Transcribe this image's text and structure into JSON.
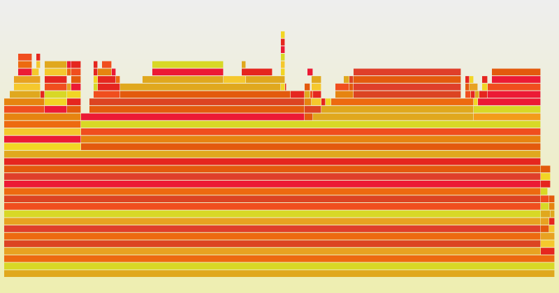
{
  "chart_data": {
    "type": "flamegraph",
    "title": "",
    "xlabel": "",
    "ylabel": "",
    "total": 800,
    "palette": [
      "#e5261f",
      "#ed6a10",
      "#e8a221",
      "#d8d826",
      "#f5c82d",
      "#e35a0d",
      "#df3f2a",
      "#e0a81e",
      "#f04e1e",
      "#f2d524",
      "#dc4422",
      "#ec1a35",
      "#f39c1a",
      "#d5a822",
      "#e68410"
    ],
    "depth_base": 19,
    "frames": [
      {
        "d": 0,
        "s": 6,
        "w": 788,
        "c": "#e0a81e"
      },
      {
        "d": 1,
        "s": 6,
        "w": 788,
        "c": "#d8d826"
      },
      {
        "d": 2,
        "s": 6,
        "w": 788,
        "c": "#ed6a10"
      },
      {
        "d": 3,
        "s": 6,
        "w": 768,
        "c": "#e8a221"
      },
      {
        "d": 3,
        "s": 774,
        "w": 20,
        "c": "#e5261f"
      },
      {
        "d": 4,
        "s": 6,
        "w": 768,
        "c": "#dc4422"
      },
      {
        "d": 4,
        "s": 774,
        "w": 20,
        "c": "#f5c82d"
      },
      {
        "d": 5,
        "s": 6,
        "w": 768,
        "c": "#ed6a10"
      },
      {
        "d": 5,
        "s": 774,
        "w": 20,
        "c": "#e8a221"
      },
      {
        "d": 6,
        "s": 6,
        "w": 768,
        "c": "#df3f2a"
      },
      {
        "d": 6,
        "s": 774,
        "w": 12,
        "c": "#e35a0d"
      },
      {
        "d": 6,
        "s": 786,
        "w": 8,
        "c": "#f5c82d"
      },
      {
        "d": 7,
        "s": 6,
        "w": 768,
        "c": "#e8a221"
      },
      {
        "d": 7,
        "s": 774,
        "w": 12,
        "c": "#e8a221"
      },
      {
        "d": 7,
        "s": 786,
        "w": 8,
        "c": "#e5261f"
      },
      {
        "d": 8,
        "s": 6,
        "w": 768,
        "c": "#d8d826"
      },
      {
        "d": 8,
        "s": 774,
        "w": 14,
        "c": "#e0a81e"
      },
      {
        "d": 8,
        "s": 788,
        "w": 6,
        "c": "#e0a81e"
      },
      {
        "d": 9,
        "s": 6,
        "w": 768,
        "c": "#f04e1e"
      },
      {
        "d": 9,
        "s": 774,
        "w": 12,
        "c": "#d8d826"
      },
      {
        "d": 9,
        "s": 786,
        "w": 8,
        "c": "#e68410"
      },
      {
        "d": 10,
        "s": 6,
        "w": 768,
        "c": "#dc4422"
      },
      {
        "d": 10,
        "s": 774,
        "w": 12,
        "c": "#f04e1e"
      },
      {
        "d": 10,
        "s": 786,
        "w": 8,
        "c": "#e35a0d"
      },
      {
        "d": 11,
        "s": 6,
        "w": 768,
        "c": "#ed6a10"
      },
      {
        "d": 11,
        "s": 774,
        "w": 10,
        "c": "#d8d826"
      },
      {
        "d": 12,
        "s": 6,
        "w": 768,
        "c": "#ec1a35"
      },
      {
        "d": 12,
        "s": 774,
        "w": 14,
        "c": "#e5261f"
      },
      {
        "d": 13,
        "s": 6,
        "w": 768,
        "c": "#df3f2a"
      },
      {
        "d": 13,
        "s": 774,
        "w": 14,
        "c": "#f2d524"
      },
      {
        "d": 14,
        "s": 6,
        "w": 768,
        "c": "#e35a0d"
      },
      {
        "d": 14,
        "s": 774,
        "w": 14,
        "c": "#e35a0d"
      },
      {
        "d": 15,
        "s": 6,
        "w": 768,
        "c": "#e5261f"
      },
      {
        "d": 16,
        "s": 6,
        "w": 768,
        "c": "#e0a81e"
      },
      {
        "d": 17,
        "s": 6,
        "w": 110,
        "c": "#f2d524"
      },
      {
        "d": 17,
        "s": 116,
        "w": 658,
        "c": "#e35a0d"
      },
      {
        "d": 18,
        "s": 6,
        "w": 110,
        "c": "#ec1a35"
      },
      {
        "d": 18,
        "s": 116,
        "w": 658,
        "c": "#e68410"
      },
      {
        "d": 19,
        "s": 6,
        "w": 110,
        "c": "#f5c82d"
      },
      {
        "d": 19,
        "s": 116,
        "w": 658,
        "c": "#f04e1e"
      },
      {
        "d": 20,
        "s": 6,
        "w": 110,
        "c": "#ed6a10"
      },
      {
        "d": 20,
        "s": 116,
        "w": 658,
        "c": "#d8d826"
      },
      {
        "d": 21,
        "s": 6,
        "w": 110,
        "c": "#e68410"
      },
      {
        "d": 21,
        "s": 116,
        "w": 320,
        "c": "#ec1a35"
      },
      {
        "d": 21,
        "s": 436,
        "w": 12,
        "c": "#e35a0d"
      },
      {
        "d": 21,
        "s": 448,
        "w": 230,
        "c": "#e0a81e"
      },
      {
        "d": 21,
        "s": 678,
        "w": 96,
        "c": "#f39c1a"
      },
      {
        "d": 22,
        "s": 6,
        "w": 58,
        "c": "#f04e1e"
      },
      {
        "d": 22,
        "s": 64,
        "w": 32,
        "c": "#ec1a35"
      },
      {
        "d": 22,
        "s": 96,
        "w": 20,
        "c": "#e35a0d"
      },
      {
        "d": 22,
        "s": 128,
        "w": 308,
        "c": "#e35a0d"
      },
      {
        "d": 22,
        "s": 436,
        "w": 24,
        "c": "#dc4422"
      },
      {
        "d": 22,
        "s": 460,
        "w": 218,
        "c": "#e0a81e"
      },
      {
        "d": 22,
        "s": 678,
        "w": 96,
        "c": "#d8d826"
      },
      {
        "d": 23,
        "s": 6,
        "w": 58,
        "c": "#e68410"
      },
      {
        "d": 23,
        "s": 64,
        "w": 32,
        "c": "#f2d524"
      },
      {
        "d": 23,
        "s": 96,
        "w": 20,
        "c": "#e5261f"
      },
      {
        "d": 23,
        "s": 128,
        "w": 308,
        "c": "#dc4422"
      },
      {
        "d": 23,
        "s": 436,
        "w": 10,
        "c": "#e68410"
      },
      {
        "d": 23,
        "s": 446,
        "w": 14,
        "c": "#f5c82d"
      },
      {
        "d": 23,
        "s": 460,
        "w": 6,
        "c": "#e5261f"
      },
      {
        "d": 23,
        "s": 466,
        "w": 8,
        "c": "#f2d524"
      },
      {
        "d": 23,
        "s": 474,
        "w": 204,
        "c": "#ed6a10"
      },
      {
        "d": 23,
        "s": 678,
        "w": 6,
        "c": "#f2d524"
      },
      {
        "d": 23,
        "s": 684,
        "w": 90,
        "c": "#ec1a35"
      },
      {
        "d": 24,
        "s": 14,
        "w": 44,
        "c": "#e0a81e"
      },
      {
        "d": 24,
        "s": 58,
        "w": 6,
        "c": "#e5261f"
      },
      {
        "d": 24,
        "s": 64,
        "w": 32,
        "c": "#d8d826"
      },
      {
        "d": 24,
        "s": 96,
        "w": 20,
        "c": "#f2d524"
      },
      {
        "d": 24,
        "s": 134,
        "w": 38,
        "c": "#f04e1e"
      },
      {
        "d": 24,
        "s": 172,
        "w": 244,
        "c": "#e35a0d"
      },
      {
        "d": 24,
        "s": 416,
        "w": 20,
        "c": "#e5261f"
      },
      {
        "d": 24,
        "s": 436,
        "w": 8,
        "c": "#e0a81e"
      },
      {
        "d": 24,
        "s": 444,
        "w": 4,
        "c": "#f04e1e"
      },
      {
        "d": 24,
        "s": 448,
        "w": 12,
        "c": "#e5261f"
      },
      {
        "d": 24,
        "s": 480,
        "w": 26,
        "c": "#e68410"
      },
      {
        "d": 24,
        "s": 506,
        "w": 154,
        "c": "#dc4422"
      },
      {
        "d": 24,
        "s": 666,
        "w": 8,
        "c": "#f04e1e"
      },
      {
        "d": 24,
        "s": 674,
        "w": 6,
        "c": "#e5261f"
      },
      {
        "d": 24,
        "s": 680,
        "w": 6,
        "c": "#e0a81e"
      },
      {
        "d": 24,
        "s": 686,
        "w": 12,
        "c": "#e5261f"
      },
      {
        "d": 24,
        "s": 698,
        "w": 76,
        "c": "#ec1a35"
      },
      {
        "d": 25,
        "s": 20,
        "w": 38,
        "c": "#f5c82d"
      },
      {
        "d": 25,
        "s": 64,
        "w": 32,
        "c": "#f04e1e"
      },
      {
        "d": 25,
        "s": 96,
        "w": 6,
        "c": "#e8a221"
      },
      {
        "d": 25,
        "s": 102,
        "w": 14,
        "c": "#ec1a35"
      },
      {
        "d": 25,
        "s": 134,
        "w": 6,
        "c": "#d8d826"
      },
      {
        "d": 25,
        "s": 140,
        "w": 32,
        "c": "#e5261f"
      },
      {
        "d": 25,
        "s": 172,
        "w": 230,
        "c": "#e0a81e"
      },
      {
        "d": 25,
        "s": 402,
        "w": 6,
        "c": "#f2d524"
      },
      {
        "d": 25,
        "s": 408,
        "w": 2,
        "c": "#e5261f"
      },
      {
        "d": 25,
        "s": 436,
        "w": 8,
        "c": "#e35a0d"
      },
      {
        "d": 25,
        "s": 446,
        "w": 14,
        "c": "#f5c82d"
      },
      {
        "d": 25,
        "s": 480,
        "w": 20,
        "c": "#f04e1e"
      },
      {
        "d": 25,
        "s": 500,
        "w": 6,
        "c": "#e35a0d"
      },
      {
        "d": 25,
        "s": 506,
        "w": 154,
        "c": "#df3f2a"
      },
      {
        "d": 25,
        "s": 666,
        "w": 6,
        "c": "#e35a0d"
      },
      {
        "d": 25,
        "s": 672,
        "w": 12,
        "c": "#e8a221"
      },
      {
        "d": 25,
        "s": 690,
        "w": 8,
        "c": "#f2d524"
      },
      {
        "d": 25,
        "s": 698,
        "w": 76,
        "c": "#f04e1e"
      },
      {
        "d": 26,
        "s": 20,
        "w": 38,
        "c": "#e8a221"
      },
      {
        "d": 26,
        "s": 64,
        "w": 32,
        "c": "#e5261f"
      },
      {
        "d": 26,
        "s": 102,
        "w": 14,
        "c": "#e35a0d"
      },
      {
        "d": 26,
        "s": 134,
        "w": 6,
        "c": "#f2d524"
      },
      {
        "d": 26,
        "s": 140,
        "w": 26,
        "c": "#e5261f"
      },
      {
        "d": 26,
        "s": 166,
        "w": 6,
        "c": "#ed6a10"
      },
      {
        "d": 26,
        "s": 204,
        "w": 116,
        "c": "#e0a81e"
      },
      {
        "d": 26,
        "s": 320,
        "w": 32,
        "c": "#f5c82d"
      },
      {
        "d": 26,
        "s": 352,
        "w": 56,
        "c": "#e0a81e"
      },
      {
        "d": 26,
        "s": 446,
        "w": 14,
        "c": "#e0a81e"
      },
      {
        "d": 26,
        "s": 492,
        "w": 8,
        "c": "#e0a81e"
      },
      {
        "d": 26,
        "s": 500,
        "w": 6,
        "c": "#dc4422"
      },
      {
        "d": 26,
        "s": 506,
        "w": 154,
        "c": "#e35a0d"
      },
      {
        "d": 26,
        "s": 666,
        "w": 6,
        "c": "#e5261f"
      },
      {
        "d": 26,
        "s": 672,
        "w": 6,
        "c": "#f2d524"
      },
      {
        "d": 26,
        "s": 690,
        "w": 8,
        "c": "#e5261f"
      },
      {
        "d": 26,
        "s": 704,
        "w": 70,
        "c": "#ec1a35"
      },
      {
        "d": 27,
        "s": 26,
        "w": 20,
        "c": "#ec1a35"
      },
      {
        "d": 27,
        "s": 46,
        "w": 10,
        "c": "#f5c82d"
      },
      {
        "d": 27,
        "s": 64,
        "w": 32,
        "c": "#f5c82d"
      },
      {
        "d": 27,
        "s": 96,
        "w": 6,
        "c": "#ed6a10"
      },
      {
        "d": 27,
        "s": 102,
        "w": 14,
        "c": "#f04e1e"
      },
      {
        "d": 27,
        "s": 134,
        "w": 6,
        "c": "#e5261f"
      },
      {
        "d": 27,
        "s": 140,
        "w": 20,
        "c": "#e68410"
      },
      {
        "d": 27,
        "s": 160,
        "w": 6,
        "c": "#ec1a35"
      },
      {
        "d": 27,
        "s": 218,
        "w": 102,
        "c": "#ec1a35"
      },
      {
        "d": 27,
        "s": 346,
        "w": 44,
        "c": "#e5261f"
      },
      {
        "d": 27,
        "s": 402,
        "w": 6,
        "c": "#f2d524"
      },
      {
        "d": 27,
        "s": 440,
        "w": 8,
        "c": "#ec1a35"
      },
      {
        "d": 27,
        "s": 506,
        "w": 154,
        "c": "#df3f2a"
      },
      {
        "d": 27,
        "s": 704,
        "w": 70,
        "c": "#e35a0d"
      },
      {
        "d": 28,
        "s": 26,
        "w": 20,
        "c": "#ed6a10"
      },
      {
        "d": 28,
        "s": 52,
        "w": 6,
        "c": "#f5c82d"
      },
      {
        "d": 28,
        "s": 64,
        "w": 32,
        "c": "#e0a81e"
      },
      {
        "d": 28,
        "s": 96,
        "w": 6,
        "c": "#ec1a35"
      },
      {
        "d": 28,
        "s": 102,
        "w": 14,
        "c": "#e5261f"
      },
      {
        "d": 28,
        "s": 134,
        "w": 6,
        "c": "#e5261f"
      },
      {
        "d": 28,
        "s": 146,
        "w": 14,
        "c": "#f04e1e"
      },
      {
        "d": 28,
        "s": 218,
        "w": 102,
        "c": "#d8d826"
      },
      {
        "d": 28,
        "s": 346,
        "w": 6,
        "c": "#e0a81e"
      },
      {
        "d": 28,
        "s": 402,
        "w": 6,
        "c": "#f5c82d"
      },
      {
        "d": 29,
        "s": 26,
        "w": 20,
        "c": "#f04e1e"
      },
      {
        "d": 29,
        "s": 52,
        "w": 6,
        "c": "#e5261f"
      },
      {
        "d": 29,
        "s": 402,
        "w": 6,
        "c": "#d8d826"
      },
      {
        "d": 30,
        "s": 402,
        "w": 6,
        "c": "#ec1a35"
      },
      {
        "d": 31,
        "s": 402,
        "w": 6,
        "c": "#e5261f"
      },
      {
        "d": 32,
        "s": 402,
        "w": 6,
        "c": "#f2d524"
      }
    ]
  }
}
